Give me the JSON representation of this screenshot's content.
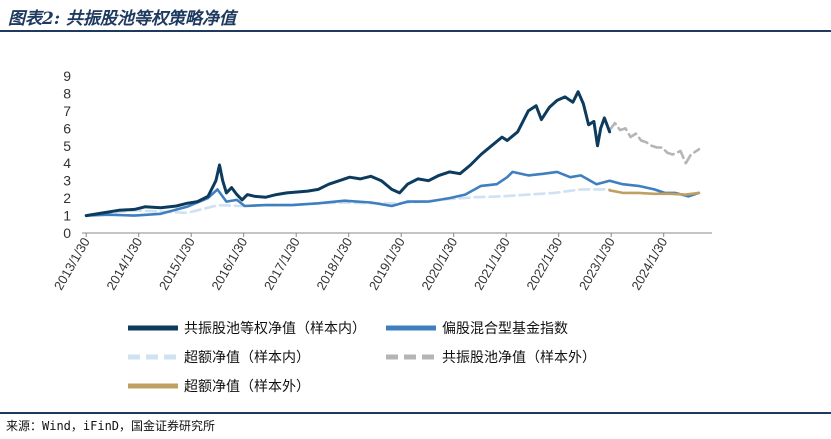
{
  "header": {
    "title": "图表2: 共振股池等权策略净值"
  },
  "footer": {
    "source": "来源：Wind，iFinD，国金证券研究所"
  },
  "chart_data": {
    "type": "line",
    "ylim": [
      0,
      9
    ],
    "yticks": [
      0,
      1,
      2,
      3,
      4,
      5,
      6,
      7,
      8,
      9
    ],
    "xlim": [
      2013.0,
      2025.0
    ],
    "xticks": [
      {
        "label": "2013/1/30",
        "x": 2013.08
      },
      {
        "label": "2014/1/30",
        "x": 2014.08
      },
      {
        "label": "2015/1/30",
        "x": 2015.08
      },
      {
        "label": "2016/1/30",
        "x": 2016.08
      },
      {
        "label": "2017/1/30",
        "x": 2017.08
      },
      {
        "label": "2018/1/30",
        "x": 2018.08
      },
      {
        "label": "2019/1/30",
        "x": 2019.08
      },
      {
        "label": "2020/1/30",
        "x": 2020.08
      },
      {
        "label": "2021/1/30",
        "x": 2021.08
      },
      {
        "label": "2022/1/30",
        "x": 2022.08
      },
      {
        "label": "2023/1/30",
        "x": 2023.08
      },
      {
        "label": "2024/1/30",
        "x": 2024.08
      }
    ],
    "grid": false,
    "legend_position": "bottom",
    "series": [
      {
        "name": "共振股池等权净值（样本内）",
        "color": "#0d3b5e",
        "dash": "solid",
        "points": [
          [
            2013.08,
            1.0
          ],
          [
            2013.4,
            1.15
          ],
          [
            2013.7,
            1.3
          ],
          [
            2014.0,
            1.35
          ],
          [
            2014.2,
            1.5
          ],
          [
            2014.5,
            1.45
          ],
          [
            2014.8,
            1.55
          ],
          [
            2015.0,
            1.7
          ],
          [
            2015.2,
            1.8
          ],
          [
            2015.4,
            2.1
          ],
          [
            2015.55,
            3.0
          ],
          [
            2015.62,
            3.9
          ],
          [
            2015.68,
            3.0
          ],
          [
            2015.75,
            2.3
          ],
          [
            2015.85,
            2.6
          ],
          [
            2015.95,
            2.2
          ],
          [
            2016.05,
            1.9
          ],
          [
            2016.15,
            2.2
          ],
          [
            2016.3,
            2.1
          ],
          [
            2016.5,
            2.05
          ],
          [
            2016.7,
            2.2
          ],
          [
            2016.9,
            2.3
          ],
          [
            2017.1,
            2.35
          ],
          [
            2017.3,
            2.4
          ],
          [
            2017.5,
            2.5
          ],
          [
            2017.7,
            2.8
          ],
          [
            2017.9,
            3.0
          ],
          [
            2018.1,
            3.2
          ],
          [
            2018.3,
            3.1
          ],
          [
            2018.5,
            3.25
          ],
          [
            2018.7,
            3.0
          ],
          [
            2018.9,
            2.5
          ],
          [
            2019.05,
            2.3
          ],
          [
            2019.2,
            2.8
          ],
          [
            2019.4,
            3.1
          ],
          [
            2019.6,
            3.0
          ],
          [
            2019.8,
            3.3
          ],
          [
            2020.0,
            3.5
          ],
          [
            2020.2,
            3.4
          ],
          [
            2020.4,
            3.9
          ],
          [
            2020.6,
            4.5
          ],
          [
            2020.8,
            5.0
          ],
          [
            2021.0,
            5.5
          ],
          [
            2021.1,
            5.3
          ],
          [
            2021.3,
            5.8
          ],
          [
            2021.5,
            7.0
          ],
          [
            2021.65,
            7.3
          ],
          [
            2021.75,
            6.5
          ],
          [
            2021.9,
            7.2
          ],
          [
            2022.05,
            7.6
          ],
          [
            2022.2,
            7.8
          ],
          [
            2022.35,
            7.5
          ],
          [
            2022.45,
            8.1
          ],
          [
            2022.55,
            7.4
          ],
          [
            2022.65,
            6.2
          ],
          [
            2022.75,
            6.4
          ],
          [
            2022.82,
            5.0
          ],
          [
            2022.88,
            6.0
          ],
          [
            2022.95,
            6.6
          ],
          [
            2023.05,
            5.8
          ]
        ]
      },
      {
        "name": "偏股混合型基金指数",
        "color": "#3f7fc0",
        "dash": "solid",
        "points": [
          [
            2013.08,
            1.0
          ],
          [
            2013.5,
            1.05
          ],
          [
            2014.0,
            1.0
          ],
          [
            2014.5,
            1.1
          ],
          [
            2015.0,
            1.5
          ],
          [
            2015.4,
            2.0
          ],
          [
            2015.58,
            2.5
          ],
          [
            2015.75,
            1.8
          ],
          [
            2015.95,
            1.9
          ],
          [
            2016.1,
            1.55
          ],
          [
            2016.5,
            1.6
          ],
          [
            2017.0,
            1.6
          ],
          [
            2017.5,
            1.7
          ],
          [
            2018.0,
            1.85
          ],
          [
            2018.5,
            1.75
          ],
          [
            2018.9,
            1.55
          ],
          [
            2019.2,
            1.8
          ],
          [
            2019.6,
            1.8
          ],
          [
            2020.0,
            2.0
          ],
          [
            2020.3,
            2.2
          ],
          [
            2020.6,
            2.7
          ],
          [
            2020.9,
            2.8
          ],
          [
            2021.1,
            3.2
          ],
          [
            2021.2,
            3.5
          ],
          [
            2021.5,
            3.3
          ],
          [
            2021.8,
            3.4
          ],
          [
            2022.05,
            3.5
          ],
          [
            2022.3,
            3.2
          ],
          [
            2022.5,
            3.3
          ],
          [
            2022.8,
            2.8
          ],
          [
            2023.05,
            3.0
          ],
          [
            2023.3,
            2.8
          ],
          [
            2023.6,
            2.7
          ],
          [
            2023.9,
            2.5
          ],
          [
            2024.1,
            2.3
          ],
          [
            2024.3,
            2.3
          ],
          [
            2024.55,
            2.1
          ],
          [
            2024.75,
            2.3
          ]
        ]
      },
      {
        "name": "超额净值（样本内）",
        "color": "#cfe1f2",
        "dash": "dashed",
        "points": [
          [
            2013.08,
            1.0
          ],
          [
            2014.0,
            1.3
          ],
          [
            2015.0,
            1.15
          ],
          [
            2015.6,
            1.6
          ],
          [
            2016.0,
            1.55
          ],
          [
            2016.5,
            1.6
          ],
          [
            2017.0,
            1.6
          ],
          [
            2017.5,
            1.7
          ],
          [
            2018.0,
            1.75
          ],
          [
            2018.5,
            1.7
          ],
          [
            2019.0,
            1.7
          ],
          [
            2019.5,
            1.8
          ],
          [
            2020.0,
            1.95
          ],
          [
            2020.5,
            2.05
          ],
          [
            2021.0,
            2.1
          ],
          [
            2021.5,
            2.2
          ],
          [
            2022.0,
            2.3
          ],
          [
            2022.5,
            2.5
          ],
          [
            2023.05,
            2.5
          ]
        ]
      },
      {
        "name": "共振股池净值（样本外）",
        "color": "#b5b5b5",
        "dash": "dashed",
        "points": [
          [
            2023.05,
            5.9
          ],
          [
            2023.15,
            6.3
          ],
          [
            2023.25,
            5.9
          ],
          [
            2023.35,
            6.0
          ],
          [
            2023.45,
            5.5
          ],
          [
            2023.55,
            5.7
          ],
          [
            2023.65,
            5.3
          ],
          [
            2023.75,
            5.2
          ],
          [
            2023.85,
            5.0
          ],
          [
            2023.95,
            4.9
          ],
          [
            2024.05,
            4.9
          ],
          [
            2024.15,
            4.6
          ],
          [
            2024.25,
            4.5
          ],
          [
            2024.4,
            4.7
          ],
          [
            2024.5,
            4.0
          ],
          [
            2024.6,
            4.5
          ],
          [
            2024.75,
            4.8
          ]
        ]
      },
      {
        "name": "超额净值（样本外）",
        "color": "#c0a060",
        "dash": "solid",
        "points": [
          [
            2023.05,
            2.45
          ],
          [
            2023.3,
            2.3
          ],
          [
            2023.6,
            2.3
          ],
          [
            2023.9,
            2.25
          ],
          [
            2024.2,
            2.25
          ],
          [
            2024.5,
            2.2
          ],
          [
            2024.75,
            2.3
          ]
        ]
      }
    ]
  }
}
